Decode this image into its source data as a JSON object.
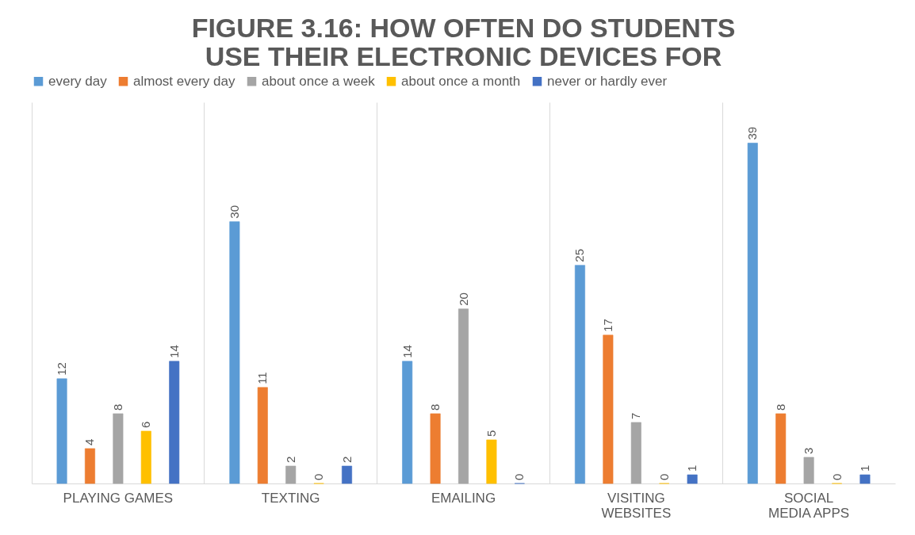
{
  "chart_data": {
    "type": "bar",
    "title": "FIGURE 3.16: HOW OFTEN DO STUDENTS USE THEIR ELECTRONIC DEVICES FOR",
    "categories": [
      "PLAYING GAMES",
      "TEXTING",
      "EMAILING",
      "VISITING WEBSITES",
      "SOCIAL MEDIA APPS"
    ],
    "series": [
      {
        "name": "every day",
        "color": "#5b9bd5",
        "values": [
          12,
          30,
          14,
          25,
          39
        ]
      },
      {
        "name": "almost every day",
        "color": "#ed7d31",
        "values": [
          4,
          11,
          8,
          17,
          8
        ]
      },
      {
        "name": "about once a week",
        "color": "#a5a5a5",
        "values": [
          8,
          2,
          20,
          7,
          3
        ]
      },
      {
        "name": "about once a month",
        "color": "#ffc000",
        "values": [
          6,
          0,
          5,
          0,
          0
        ]
      },
      {
        "name": "never or hardly ever",
        "color": "#4472c4",
        "values": [
          14,
          2,
          0,
          1,
          1
        ]
      }
    ],
    "data_labels": true,
    "grid": "x",
    "legend": "top"
  }
}
